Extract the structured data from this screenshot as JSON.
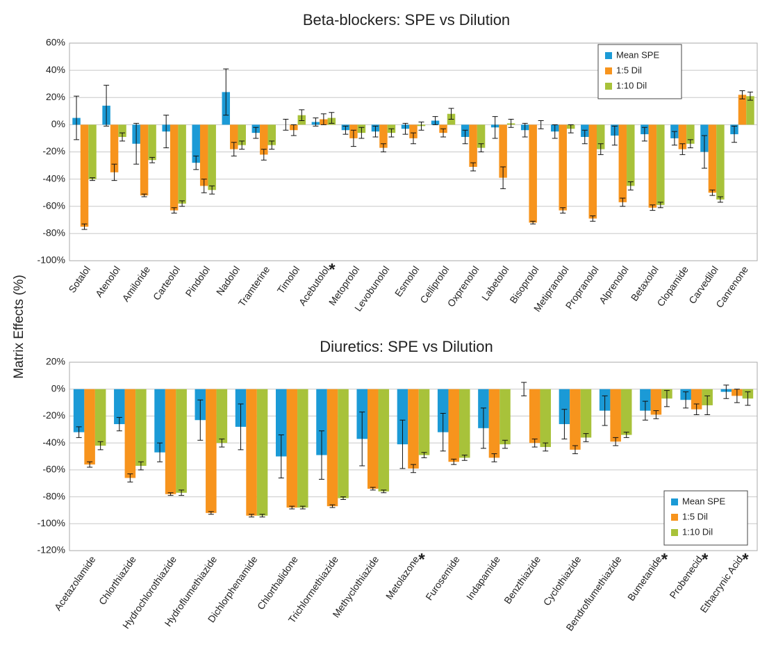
{
  "ylabel": "Matrix Effects (%)",
  "chart_data": [
    {
      "type": "bar",
      "title": "Beta-blockers: SPE vs Dilution",
      "categories": [
        "Sotalol",
        "Atenolol",
        "Amiloride",
        "Carteolol",
        "Pindolol",
        "Nadolol",
        "Tramterine",
        "Timolol",
        "Acebutolol",
        "Metoprolol",
        "Levobunolol",
        "Esmolol",
        "Celliprolol",
        "Oxprenolol",
        "Labetolol",
        "Bisoprolol",
        "Metipranolol",
        "Propranolol",
        "Alprenolol",
        "Betaxolol",
        "Clopamide",
        "Carvedilol",
        "Canrenone"
      ],
      "series": [
        {
          "name": "Mean SPE",
          "color": "#1b9ad6",
          "values": [
            5,
            14,
            -14,
            -5,
            -28,
            24,
            -6,
            0,
            2,
            -4,
            -5,
            -3,
            3,
            -9,
            -2,
            -4,
            -5,
            -9,
            -8,
            -7,
            -10,
            -20,
            -7
          ],
          "errors": [
            16,
            15,
            15,
            12,
            5,
            17,
            4,
            4,
            3,
            3,
            4,
            4,
            3,
            5,
            8,
            5,
            5,
            5,
            7,
            5,
            5,
            12,
            6
          ]
        },
        {
          "name": "1:5 Dil",
          "color": "#f7941d",
          "values": [
            -75,
            -35,
            -52,
            -63,
            -45,
            -18,
            -22,
            -4,
            4,
            -10,
            -17,
            -10,
            -6,
            -31,
            -39,
            -72,
            -63,
            -69,
            -57,
            -61,
            -18,
            -50,
            22
          ],
          "errors": [
            2,
            6,
            1,
            2,
            5,
            5,
            4,
            4,
            4,
            6,
            3,
            4,
            3,
            3,
            8,
            1,
            2,
            2,
            3,
            2,
            4,
            2,
            3
          ]
        },
        {
          "name": "1:10 Dil",
          "color": "#a8c23a",
          "values": [
            -40,
            -9,
            -26,
            -58,
            -48,
            -15,
            -15,
            7,
            5,
            -6,
            -6,
            -1,
            8,
            -17,
            1,
            0,
            -3,
            -18,
            -45,
            -59,
            -14,
            -55,
            21
          ],
          "errors": [
            1,
            3,
            2,
            2,
            3,
            3,
            3,
            4,
            4,
            4,
            3,
            3,
            4,
            3,
            3,
            3,
            3,
            4,
            3,
            2,
            3,
            2,
            3
          ]
        }
      ],
      "annotations": [
        {
          "text": "*",
          "category": "Acebutolol"
        }
      ],
      "ylim": [
        -100,
        60
      ],
      "yticks": [
        {
          "value": -100,
          "label": "-100%"
        },
        {
          "value": -80,
          "label": "-80%"
        },
        {
          "value": -60,
          "label": "-60%"
        },
        {
          "value": -40,
          "label": "-40%"
        },
        {
          "value": -20,
          "label": "-20%"
        },
        {
          "value": 0,
          "label": "0%"
        },
        {
          "value": 20,
          "label": "20%"
        },
        {
          "value": 40,
          "label": "40%"
        },
        {
          "value": 60,
          "label": "60%"
        }
      ],
      "grid": true,
      "legend": "upper right"
    },
    {
      "type": "bar",
      "title": "Diuretics: SPE vs Dilution",
      "categories": [
        "Acetazolamide",
        "Chlorthiazide",
        "Hydrochlorothiazide",
        "Hydroflumethiazide",
        "Dichlorphenamide",
        "Chlorthalidone",
        "Trichlormethiazide",
        "Methyclothiazide",
        "Metolazone",
        "Furosemide",
        "Indapamide",
        "Benzthiazide",
        "Cyclothiazide",
        "Bendroflumethiazide",
        "Bumetanide",
        "Probenecid",
        "Ethacrynic Acid"
      ],
      "series": [
        {
          "name": "Mean SPE",
          "color": "#1b9ad6",
          "values": [
            -32,
            -26,
            -47,
            -23,
            -28,
            -50,
            -49,
            -37,
            -41,
            -32,
            -29,
            0,
            -26,
            -16,
            -16,
            -8,
            -2
          ],
          "errors": [
            4,
            5,
            7,
            15,
            17,
            16,
            18,
            20,
            18,
            14,
            15,
            5,
            11,
            11,
            7,
            6,
            5
          ]
        },
        {
          "name": "1:5 Dil",
          "color": "#f7941d",
          "values": [
            -56,
            -66,
            -78,
            -92,
            -94,
            -88,
            -87,
            -74,
            -59,
            -54,
            -51,
            -40,
            -45,
            -39,
            -19,
            -15,
            -5
          ],
          "errors": [
            2,
            3,
            1,
            1,
            1,
            1,
            1,
            1,
            3,
            2,
            3,
            3,
            3,
            3,
            3,
            4,
            5
          ]
        },
        {
          "name": "1:10 Dil",
          "color": "#a8c23a",
          "values": [
            -42,
            -57,
            -77,
            -40,
            -94,
            -88,
            -81,
            -76,
            -49,
            -51,
            -41,
            -43,
            -36,
            -34,
            -7,
            -12,
            -7
          ],
          "errors": [
            3,
            3,
            2,
            3,
            1,
            1,
            1,
            1,
            2,
            2,
            3,
            3,
            3,
            2,
            6,
            7,
            5
          ]
        }
      ],
      "annotations": [
        {
          "text": "*",
          "category": "Metolazone"
        },
        {
          "text": "*",
          "category": "Bumetanide"
        },
        {
          "text": "*",
          "category": "Probenecid"
        },
        {
          "text": "*",
          "category": "Ethacrynic Acid"
        }
      ],
      "ylim": [
        -120,
        20
      ],
      "yticks": [
        {
          "value": -120,
          "label": "-120%"
        },
        {
          "value": -100,
          "label": "-100%"
        },
        {
          "value": -80,
          "label": "-80%"
        },
        {
          "value": -60,
          "label": "-60%"
        },
        {
          "value": -40,
          "label": "-40%"
        },
        {
          "value": -20,
          "label": "-20%"
        },
        {
          "value": 0,
          "label": "0%"
        },
        {
          "value": 20,
          "label": "20%"
        }
      ],
      "grid": true,
      "legend": "lower right"
    }
  ]
}
